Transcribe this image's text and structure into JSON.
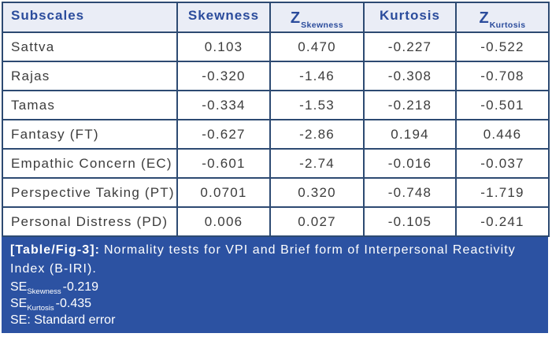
{
  "table": {
    "columns": [
      {
        "label": "Subscales"
      },
      {
        "label": "Skewness"
      },
      {
        "label": "Z",
        "sub": "Skewness"
      },
      {
        "label": "Kurtosis"
      },
      {
        "label": "Z",
        "sub": "Kurtosis"
      }
    ],
    "rows": [
      {
        "subscale": "Sattva",
        "values": [
          "0.103",
          "0.470",
          "-0.227",
          "-0.522"
        ]
      },
      {
        "subscale": "Rajas",
        "values": [
          "-0.320",
          "-1.46",
          "-0.308",
          "-0.708"
        ]
      },
      {
        "subscale": "Tamas",
        "values": [
          "-0.334",
          "-1.53",
          "-0.218",
          "-0.501"
        ]
      },
      {
        "subscale": "Fantasy (FT)",
        "values": [
          "-0.627",
          "-2.86",
          "0.194",
          "0.446"
        ]
      },
      {
        "subscale": "Empathic Concern (EC)",
        "values": [
          "-0.601",
          "-2.74",
          "-0.016",
          "-0.037"
        ]
      },
      {
        "subscale": "Perspective Taking (PT)",
        "values": [
          "0.0701",
          "0.320",
          "-0.748",
          "-1.719"
        ]
      },
      {
        "subscale": "Personal Distress (PD)",
        "values": [
          "0.006",
          "0.027",
          "-0.105",
          "-0.241"
        ]
      }
    ]
  },
  "caption": {
    "label": "[Table/Fig-3]:",
    "text": "Normality tests for VPI and Brief form of Interpersonal Reactivity Index (B-IRI)."
  },
  "footnotes": {
    "se_skewness": {
      "prefix": "SE",
      "sub": "Skewness",
      "value": "-0.219"
    },
    "se_kurtosis": {
      "prefix": "SE",
      "sub": "Kurtosis",
      "value": "-0.435"
    },
    "se_definition": "SE: Standard error"
  },
  "colors": {
    "band_blue": "#2c52a2",
    "header_bg": "#eaedf6",
    "header_text": "#2b4c9c",
    "grid_line": "#2d4a72",
    "body_text": "#3c3c3c"
  }
}
